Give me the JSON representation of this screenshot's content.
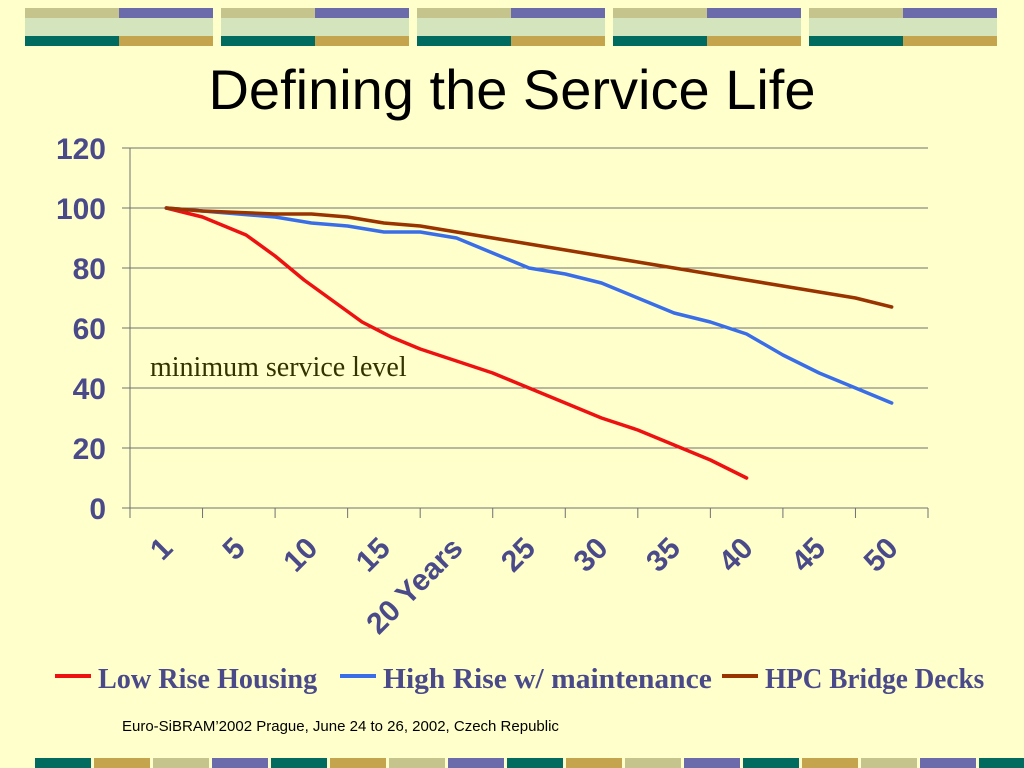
{
  "slide": {
    "title": "Defining the Service Life",
    "footer": "Euro-SiBRAM’2002 Prague, June 24 to 26, 2002, Czech Republic"
  },
  "colors": {
    "background": "#ffffcc",
    "band_navy": "#6b6bab",
    "band_olive": "#c4c48c",
    "band_teal": "#006b5e",
    "band_gold": "#c4a44c",
    "band_light": "#d4e4bc"
  },
  "chart_data": {
    "type": "line",
    "ylim": [
      0,
      120
    ],
    "yticks": [
      0,
      20,
      40,
      60,
      80,
      100,
      120
    ],
    "xlim": [
      0,
      55
    ],
    "x_tick_labels": [
      "1",
      "5",
      "10",
      "15",
      "20 Years",
      "25",
      "30",
      "35",
      "40",
      "45",
      "50"
    ],
    "grid": true,
    "legend_position": "bottom",
    "annotation": "minimum service level",
    "series": [
      {
        "name": "Low Rise Housing",
        "color": "#ee1111",
        "points": [
          [
            2.5,
            100
          ],
          [
            5,
            97
          ],
          [
            6.5,
            94
          ],
          [
            8,
            91
          ],
          [
            10,
            84
          ],
          [
            12,
            76
          ],
          [
            14,
            69
          ],
          [
            16,
            62
          ],
          [
            18,
            57
          ],
          [
            20,
            53
          ],
          [
            22.5,
            49
          ],
          [
            25,
            45
          ],
          [
            27.5,
            40
          ],
          [
            30,
            35
          ],
          [
            32.5,
            30
          ],
          [
            35,
            26
          ],
          [
            37.5,
            21
          ],
          [
            40,
            16
          ],
          [
            42.5,
            10
          ]
        ]
      },
      {
        "name": "High Rise w/ maintenance",
        "color": "#3a6ee8",
        "points": [
          [
            2.5,
            100
          ],
          [
            5,
            99
          ],
          [
            10,
            97
          ],
          [
            12.5,
            95
          ],
          [
            15,
            94
          ],
          [
            17.5,
            92
          ],
          [
            20,
            92
          ],
          [
            22.5,
            90
          ],
          [
            25,
            85
          ],
          [
            27.5,
            80
          ],
          [
            30,
            78
          ],
          [
            32.5,
            75
          ],
          [
            35,
            70
          ],
          [
            37.5,
            65
          ],
          [
            40,
            62
          ],
          [
            42.5,
            58
          ],
          [
            45,
            51
          ],
          [
            47.5,
            45
          ],
          [
            50,
            40
          ],
          [
            52.5,
            35
          ]
        ]
      },
      {
        "name": "HPC Bridge Decks",
        "color": "#993300",
        "points": [
          [
            2.5,
            100
          ],
          [
            5,
            99
          ],
          [
            10,
            98
          ],
          [
            12.5,
            98
          ],
          [
            15,
            97
          ],
          [
            17.5,
            95
          ],
          [
            20,
            94
          ],
          [
            22.5,
            92
          ],
          [
            25,
            90
          ],
          [
            27.5,
            88
          ],
          [
            30,
            86
          ],
          [
            32.5,
            84
          ],
          [
            35,
            82
          ],
          [
            37.5,
            80
          ],
          [
            40,
            78
          ],
          [
            42.5,
            76
          ],
          [
            45,
            74
          ],
          [
            47.5,
            72
          ],
          [
            50,
            70
          ],
          [
            52.5,
            67
          ]
        ]
      }
    ]
  }
}
